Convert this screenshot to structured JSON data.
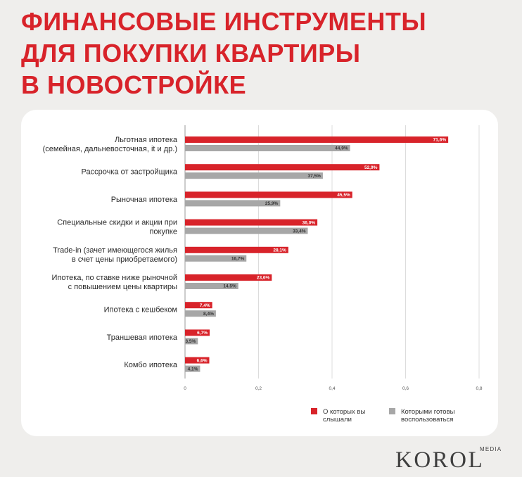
{
  "title": {
    "lines": [
      "ФИНАНСОВЫЕ ИНСТРУМЕНТЫ",
      "ДЛЯ ПОКУПКИ КВАРТИРЫ",
      "В НОВОСТРОЙКЕ"
    ]
  },
  "brand": {
    "name": "KOROL",
    "suffix": "MEDIA"
  },
  "colors": {
    "heard": "#d8232a",
    "ready": "#a7a7a7",
    "title": "#d8232a",
    "grid": "#d4d4d4"
  },
  "chart_data": {
    "type": "bar",
    "orientation": "horizontal",
    "categories": [
      [
        "Льготная ипотека",
        "(семейная, дальневосточная, it и др.)"
      ],
      [
        "Рассрочка от застройщика"
      ],
      [
        "Рыночная ипотека"
      ],
      [
        "Специальные скидки и акции при",
        "покупке"
      ],
      [
        "Trade-in (зачет имеющегося жилья",
        "в счет цены приобретаемого)"
      ],
      [
        "Ипотека, по ставке ниже рыночной",
        "с повышением цены квартиры"
      ],
      [
        "Ипотека с кешбеком"
      ],
      [
        "Траншевая ипотека"
      ],
      [
        "Комбо ипотека"
      ]
    ],
    "series": [
      {
        "name": "О которых вы слышали",
        "legend_lines": [
          "О которых вы",
          "слышали"
        ],
        "values": [
          0.716,
          0.529,
          0.455,
          0.36,
          0.281,
          0.236,
          0.074,
          0.067,
          0.066
        ],
        "labels": [
          "71,6%",
          "52,9%",
          "45,5%",
          "36,0%",
          "28,1%",
          "23,6%",
          "7,4%",
          "6,7%",
          "6,6%"
        ]
      },
      {
        "name": "Которыми готовы воспользоваться",
        "legend_lines": [
          "Которыми готовы",
          "воспользоваться"
        ],
        "values": [
          0.449,
          0.375,
          0.259,
          0.334,
          0.167,
          0.145,
          0.084,
          0.035,
          0.041
        ],
        "labels": [
          "44,9%",
          "37,5%",
          "25,9%",
          "33,4%",
          "16,7%",
          "14,5%",
          "8,4%",
          "3,5%",
          "4,1%"
        ]
      }
    ],
    "xlim": [
      0,
      0.8
    ],
    "xticks": [
      0,
      0.2,
      0.4,
      0.6,
      0.8
    ],
    "xtick_labels": [
      "0",
      "0,2",
      "0,4",
      "0,6",
      "0,8"
    ],
    "grid": "vertical",
    "legend_position": "bottom-right"
  }
}
